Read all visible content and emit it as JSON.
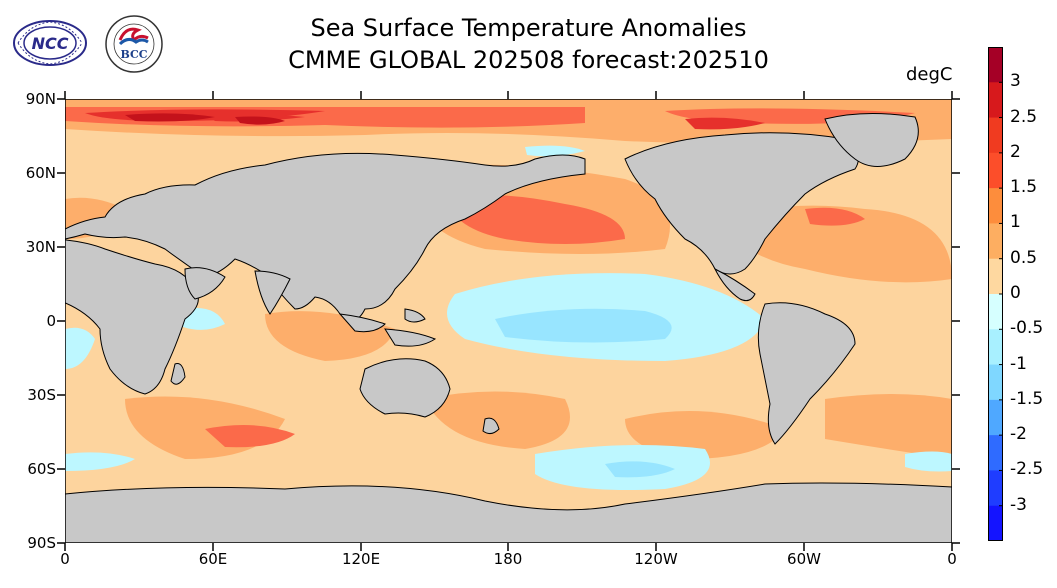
{
  "title": "Sea Surface Temperature Anomalies",
  "subtitle": "CMME GLOBAL 202508 forecast:202510",
  "unit": "degC",
  "logos": [
    {
      "name": "ncc-logo",
      "text": "NCC"
    },
    {
      "name": "bcc-logo",
      "text": "BCC"
    }
  ],
  "axes": {
    "lat_ticks": [
      "90N",
      "60N",
      "30N",
      "0",
      "30S",
      "60S",
      "90S"
    ],
    "lon_ticks": [
      "0",
      "60E",
      "120E",
      "180",
      "120W",
      "60W",
      "0"
    ]
  },
  "colorbar": {
    "labels": [
      "3",
      "2.5",
      "2",
      "1.5",
      "1",
      "0.5",
      "0",
      "-0.5",
      "-1",
      "-1.5",
      "-2",
      "-2.5",
      "-3"
    ],
    "colors": [
      "#a50026",
      "#d7191c",
      "#f03b20",
      "#fc4e2a",
      "#fd8d3c",
      "#fdae61",
      "#fed8a0",
      "#d6ffff",
      "#a8f0ff",
      "#7fd7ff",
      "#4fa8ff",
      "#2f6bff",
      "#1f3dff",
      "#1414ff"
    ]
  },
  "colors": {
    "land": "#c8c8c8",
    "ocean_base": "#fdd49e",
    "warm": "#fdae6b",
    "hot": "#fb6a4a",
    "very_hot": "#e6302c",
    "extreme": "#c4121b",
    "cool": "#bdf7ff",
    "cooler": "#98e5ff"
  }
}
